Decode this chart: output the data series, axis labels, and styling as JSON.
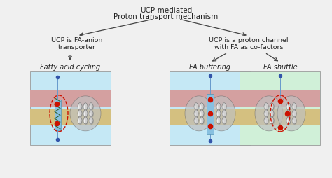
{
  "title_line1": "UCP-mediated",
  "title_line2": "Proton transport mechanism",
  "left_box_text": "UCP is FA-anion\ntransporter",
  "right_box_text": "UCP is a proton channel\nwith FA as co-factors",
  "label1": "Fatty acid cycling",
  "label2": "FA buffering",
  "label3": "FA shuttle",
  "bg_color": "#f0f0f0",
  "arrow_color": "#444444",
  "text_color": "#222222",
  "membrane_top_color": "#d4a0a0",
  "membrane_bottom_color": "#d4c080",
  "panel1_bg": "#c5e8f5",
  "panel2_bg": "#c5e8f5",
  "panel3_bg": "#d0f0d8",
  "protein_light": "#d0d0d0",
  "protein_mid": "#b8b8b8",
  "protein_dark": "#909090",
  "protein_edge": "#707070",
  "protein_bg": "#c0c0c0",
  "red_dot": "#cc1100",
  "blue_dot": "#3355aa",
  "blue_line": "#6699cc",
  "channel_color": "#88c0e0",
  "channel_edge": "#4488aa",
  "red_outline": "#cc1100",
  "panel_border": "#999999",
  "arrow_branch_color": "#555555"
}
